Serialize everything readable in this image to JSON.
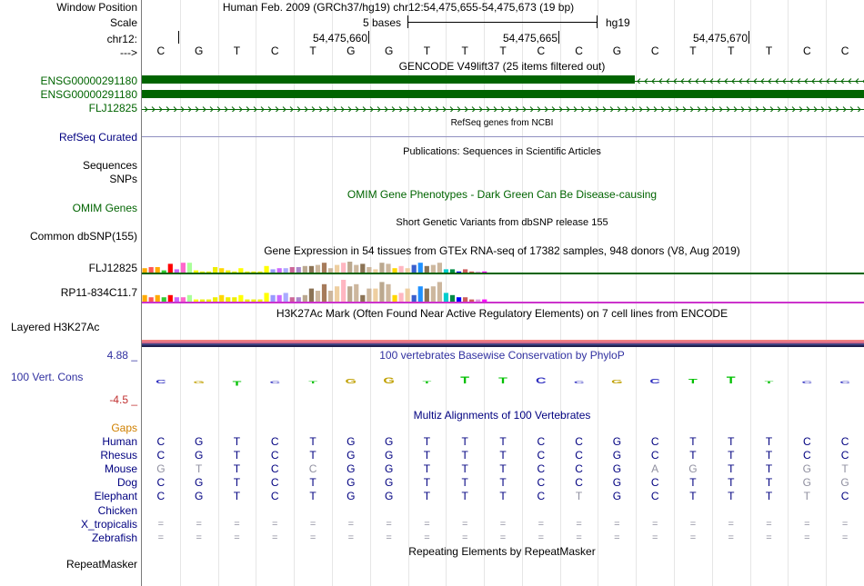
{
  "colors": {
    "label_default": "#000000",
    "label_gene": "#006400",
    "label_navy": "#000080",
    "label_conservation": "#3030a0",
    "label_gaps": "#d08000",
    "gene_green": "#006400",
    "gtex_line": "#006400",
    "gtex_line2": "#cc33cc",
    "multiz_faint": "#808080"
  },
  "header": {
    "window_position_label": "Window Position",
    "scale_label": "Scale",
    "chrom_label": "chr12:",
    "strand_label": "--->",
    "assembly_text": "Human Feb. 2009 (GRCh37/hg19)   chr12:54,475,655-54,475,673 (19 bp)",
    "scale_text": "5 bases",
    "scale_assembly": "hg19",
    "ruler_positions": [
      "54,475,660",
      "54,475,665",
      "54,475,670"
    ]
  },
  "sequence": [
    "C",
    "G",
    "T",
    "C",
    "T",
    "G",
    "G",
    "T",
    "T",
    "T",
    "C",
    "C",
    "G",
    "C",
    "T",
    "T",
    "T",
    "C",
    "C"
  ],
  "tracks": {
    "gencode": {
      "title": "GENCODE V49lift37 (25 items filtered out)",
      "items": [
        "ENSG00000291180",
        "ENSG00000291180",
        "FLJ12825"
      ]
    },
    "refseq": {
      "title": "RefSeq genes from NCBI",
      "label": "RefSeq Curated"
    },
    "publications": {
      "title": "Publications: Sequences in Scientific Articles",
      "labels": [
        "Sequences",
        "SNPs"
      ]
    },
    "omim": {
      "title": "OMIM Gene Phenotypes - Dark Green Can Be Disease-causing",
      "label": "OMIM Genes"
    },
    "dbsnp": {
      "title": "Short Genetic Variants from dbSNP release 155",
      "label": "Common dbSNP(155)"
    },
    "gtex": {
      "title": "Gene Expression in 54 tissues from GTEx RNA-seq of 17382 samples, 948 donors (V8, Aug 2019)",
      "genes": [
        {
          "name": "FLJ12825",
          "values": [
            4,
            5,
            5,
            2,
            8,
            3,
            9,
            9,
            2,
            1,
            1,
            5,
            4,
            2,
            1,
            4,
            1,
            1,
            1,
            6,
            3,
            4,
            4,
            5,
            5,
            6,
            6,
            7,
            9,
            4,
            7,
            9,
            10,
            7,
            8,
            5,
            3,
            9,
            8,
            4,
            6,
            4,
            7,
            9,
            6,
            7,
            9,
            3,
            3,
            1,
            3,
            1,
            1,
            1
          ]
        },
        {
          "name": "RP11-834C11.7",
          "values": [
            3,
            2,
            3,
            2,
            3,
            2,
            2,
            3,
            1,
            1,
            1,
            2,
            3,
            2,
            2,
            3,
            1,
            1,
            1,
            4,
            3,
            3,
            4,
            2,
            2,
            3,
            6,
            5,
            8,
            5,
            7,
            10,
            7,
            8,
            3,
            6,
            6,
            9,
            8,
            3,
            4,
            6,
            3,
            7,
            6,
            7,
            9,
            4,
            3,
            2,
            2,
            1,
            1,
            1
          ]
        }
      ],
      "tissue_colors": [
        "#ffaa00",
        "#ff5555",
        "#ffaa00",
        "#33cc33",
        "#ff0000",
        "#cc66ff",
        "#ff66cc",
        "#aaff99",
        "#ffff00",
        "#eeee00",
        "#eeee00",
        "#eeee00",
        "#ffd700",
        "#eeee00",
        "#eeee00",
        "#ffff00",
        "#eeee00",
        "#eeee00",
        "#eeee00",
        "#ffff00",
        "#9999ff",
        "#cc66ff",
        "#aaaaff",
        "#cc6699",
        "#aa88cc",
        "#bba88f",
        "#8b7355",
        "#cdb79e",
        "#a67b5b",
        "#cdb79e",
        "#eecfa1",
        "#ffb6c1",
        "#bba88f",
        "#cdb79e",
        "#8b7355",
        "#cdb79e",
        "#eecfa1",
        "#bba88f",
        "#cdb79e",
        "#ffd700",
        "#ffb6c1",
        "#eecfa1",
        "#3a5fcd",
        "#1e90ff",
        "#8b7355",
        "#cdb79e",
        "#cdb79e",
        "#00cdcd",
        "#008b45",
        "#0000ff",
        "#cd5c5c",
        "#cd5c5c",
        "#dda0dd",
        "#ff00ff"
      ]
    },
    "h3k27ac": {
      "title": "H3K27Ac Mark (Often Found Near Active Regulatory Elements) on 7 cell lines from ENCODE",
      "label": "Layered H3K27Ac"
    },
    "conservation": {
      "title": "100 vertebrates Basewise Conservation by PhyloP",
      "label": "100 Vert. Cons",
      "max": "4.88 _",
      "min": "-4.5 _",
      "scores": [
        0.3,
        0,
        -0.4,
        0.2,
        0,
        0.4,
        0.5,
        0.2,
        0.6,
        0.5,
        0.5,
        0,
        0.3,
        0.4,
        0.4,
        0.6,
        0.2,
        0,
        0.2
      ]
    },
    "multiz": {
      "title": "Multiz Alignments of 100 Vertebrates",
      "gaps_label": "Gaps",
      "species": [
        {
          "name": "Human",
          "bases": [
            "C",
            "G",
            "T",
            "C",
            "T",
            "G",
            "G",
            "T",
            "T",
            "T",
            "C",
            "C",
            "G",
            "C",
            "T",
            "T",
            "T",
            "C",
            "C"
          ]
        },
        {
          "name": "Rhesus",
          "bases": [
            "C",
            "G",
            "T",
            "C",
            "T",
            "G",
            "G",
            "T",
            "T",
            "T",
            "C",
            "C",
            "G",
            "C",
            "T",
            "T",
            "T",
            "C",
            "C"
          ]
        },
        {
          "name": "Mouse",
          "bases": [
            "G",
            "T",
            "T",
            "C",
            "C",
            "G",
            "G",
            "T",
            "T",
            "T",
            "C",
            "C",
            "G",
            "A",
            "G",
            "T",
            "T",
            "G",
            "T"
          ]
        },
        {
          "name": "Dog",
          "bases": [
            "C",
            "G",
            "T",
            "C",
            "T",
            "G",
            "G",
            "T",
            "T",
            "T",
            "C",
            "C",
            "G",
            "C",
            "T",
            "T",
            "T",
            "G",
            "G"
          ]
        },
        {
          "name": "Elephant",
          "bases": [
            "C",
            "G",
            "T",
            "C",
            "T",
            "G",
            "G",
            "T",
            "T",
            "T",
            "C",
            "T",
            "G",
            "C",
            "T",
            "T",
            "T",
            "T",
            "C"
          ]
        },
        {
          "name": "Chicken",
          "bases": []
        },
        {
          "name": "X_tropicalis",
          "bases": [
            "=",
            "=",
            "=",
            "=",
            "=",
            "=",
            "=",
            "=",
            "=",
            "=",
            "=",
            "=",
            "=",
            "=",
            "=",
            "=",
            "=",
            "=",
            "="
          ]
        },
        {
          "name": "Zebrafish",
          "bases": [
            "=",
            "=",
            "=",
            "=",
            "=",
            "=",
            "=",
            "=",
            "=",
            "=",
            "=",
            "=",
            "=",
            "=",
            "=",
            "=",
            "=",
            "=",
            "="
          ]
        }
      ],
      "faint_cells": [
        [
          2,
          0
        ],
        [
          2,
          1
        ],
        [
          2,
          4
        ],
        [
          2,
          13
        ],
        [
          2,
          14
        ],
        [
          2,
          17
        ],
        [
          2,
          18
        ],
        [
          3,
          17
        ],
        [
          3,
          18
        ],
        [
          4,
          11
        ],
        [
          4,
          17
        ]
      ]
    },
    "repeatmasker": {
      "title": "Repeating Elements by RepeatMasker",
      "label": "RepeatMasker"
    }
  }
}
